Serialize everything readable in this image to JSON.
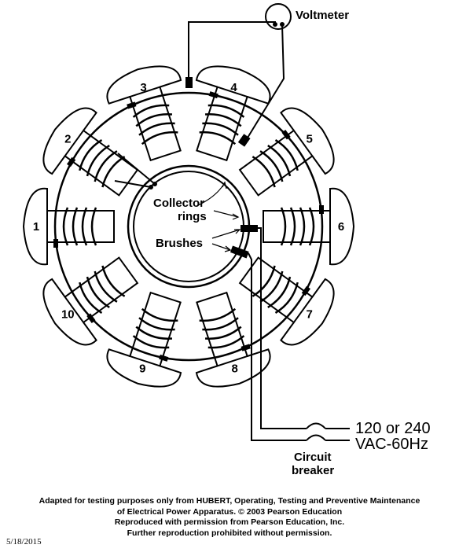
{
  "diagram": {
    "voltmeter_label": "Voltmeter",
    "collector_label_line1": "Collector",
    "collector_label_line2": "rings",
    "brushes_label": "Brushes",
    "supply_line1": "120 or 240",
    "supply_line2": "VAC-60Hz",
    "breaker_line1": "Circuit",
    "breaker_line2": "breaker",
    "poles": [
      {
        "id": "1",
        "label": "1"
      },
      {
        "id": "2",
        "label": "2"
      },
      {
        "id": "3",
        "label": "3"
      },
      {
        "id": "4",
        "label": "4"
      },
      {
        "id": "5",
        "label": "5"
      },
      {
        "id": "6",
        "label": "6"
      },
      {
        "id": "7",
        "label": "7"
      },
      {
        "id": "8",
        "label": "8"
      },
      {
        "id": "9",
        "label": "9"
      },
      {
        "id": "10",
        "label": "10"
      }
    ]
  },
  "caption": {
    "line1": "Adapted for testing purposes only from HUBERT, Operating, Testing and Preventive Maintenance",
    "line2": "of Electrical Power Apparatus. © 2003 Pearson Education",
    "line3": "Reproduced with permission from Pearson Education, Inc.",
    "line4": "Further reproduction prohibited without permission."
  },
  "date": "5/18/2015"
}
